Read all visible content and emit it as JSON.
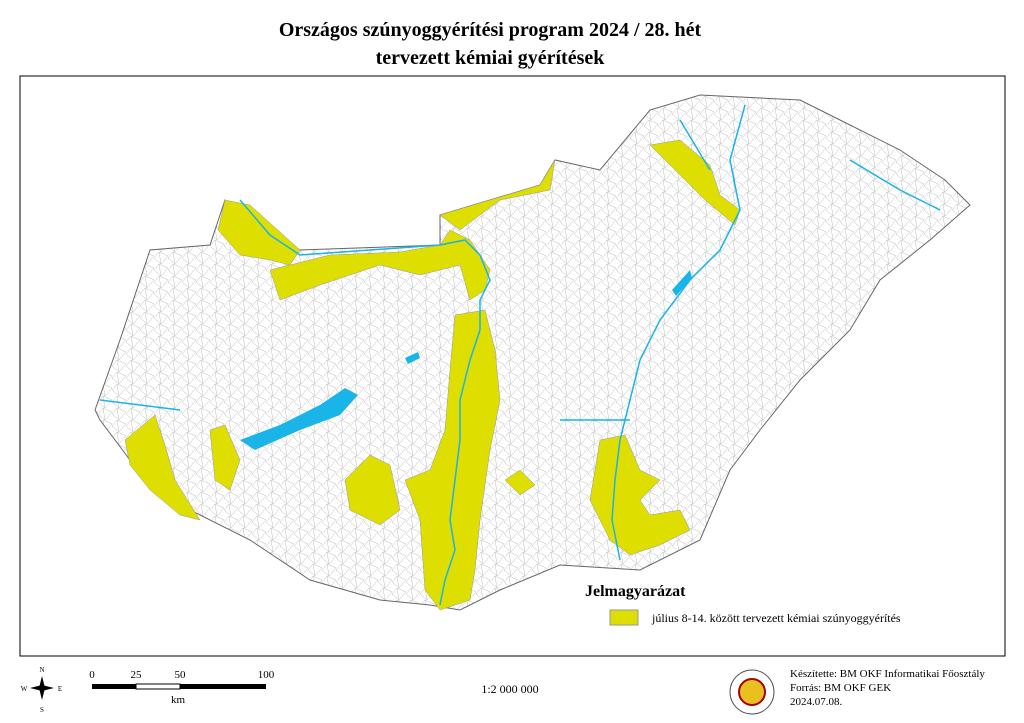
{
  "title": {
    "line1": "Országos szúnyoggyérítési program 2024 / 28. hét",
    "line2": "tervezett kémiai gyérítések"
  },
  "legend": {
    "title": "Jelmagyarázat",
    "items": [
      "július 8-14. között tervezett kémiai szúnyoggyérítés"
    ]
  },
  "compass": {
    "north": "N",
    "east": "E",
    "south": "S",
    "west": "W"
  },
  "scale_bar": {
    "labels": [
      "0",
      "25",
      "50",
      "100"
    ],
    "unit": "km"
  },
  "scale": "1:2 000 000",
  "credits": [
    "Készítette: BM OKF Informatikai Főosztály",
    "Forrás: BM OKF GEK",
    "2024.07.08."
  ]
}
